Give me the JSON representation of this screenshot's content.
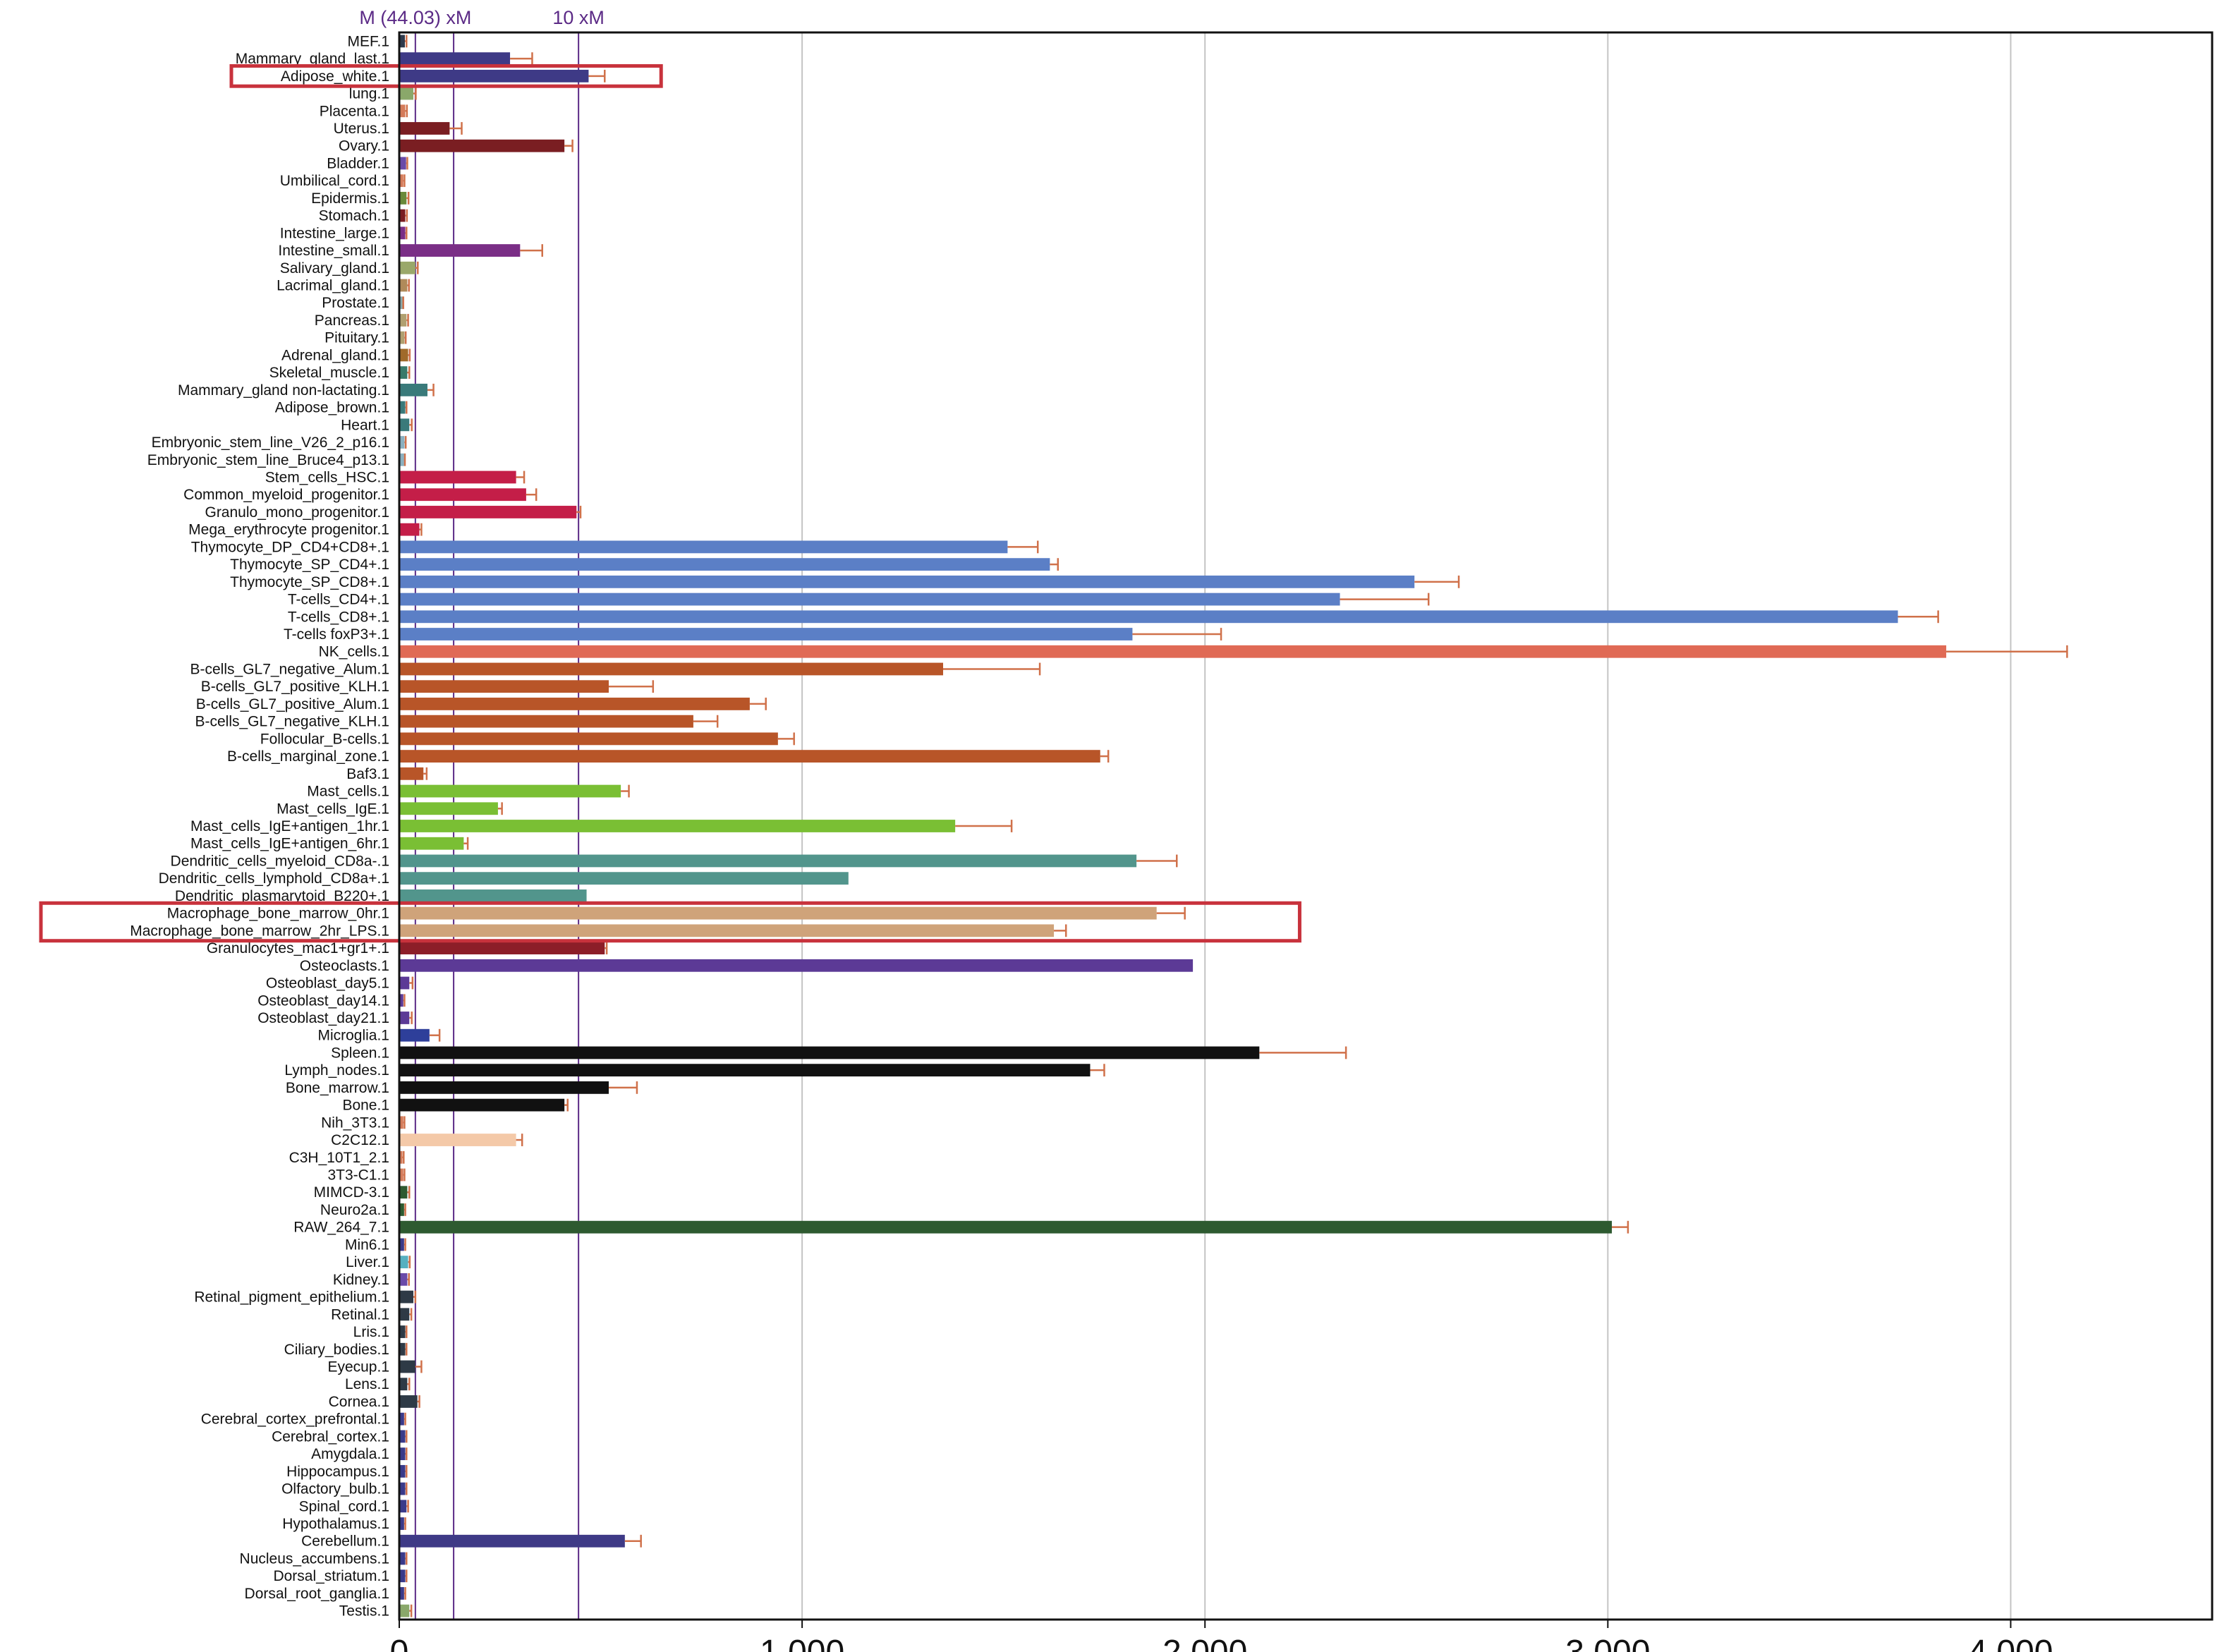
{
  "chart_data": {
    "type": "bar",
    "orientation": "horizontal",
    "xlim": [
      0,
      4500
    ],
    "x_ticks": [
      0,
      1000,
      2000,
      3000,
      4000
    ],
    "x_tick_labels": [
      "0",
      "1,000",
      "2,000",
      "3,000",
      "4,000"
    ],
    "grid": true,
    "reference_lines": [
      {
        "value": 40,
        "label": "M (44.03) xM",
        "color": "#5b2a86"
      },
      {
        "value": 135,
        "label": "",
        "color": "#5b2a86"
      },
      {
        "value": 445,
        "label": "10 xM",
        "color": "#5b2a86"
      }
    ],
    "highlight_boxes": [
      {
        "categories": [
          "Adipose_white.1"
        ],
        "color": "#c8323c"
      },
      {
        "categories": [
          "Macrophage_bone_marrow_0hr.1",
          "Macrophage_bone_marrow_2hr_LPS.1"
        ],
        "color": "#c8323c"
      }
    ],
    "error_bar_color": "#d0714a",
    "bars": [
      {
        "label": "MEF.1",
        "value": 14,
        "error": 4,
        "color": "#2f3a4c"
      },
      {
        "label": "Mammary_gland_last.1",
        "value": 275,
        "error": 55,
        "color": "#3e3a86"
      },
      {
        "label": "Adipose_white.1",
        "value": 470,
        "error": 40,
        "color": "#3e3a86"
      },
      {
        "label": "lung.1",
        "value": 35,
        "error": 6,
        "color": "#8aa86a"
      },
      {
        "label": "Placenta.1",
        "value": 15,
        "error": 4,
        "color": "#d47b5a"
      },
      {
        "label": "Uterus.1",
        "value": 125,
        "error": 30,
        "color": "#7a1e22"
      },
      {
        "label": "Ovary.1",
        "value": 410,
        "error": 20,
        "color": "#7a1e22"
      },
      {
        "label": "Bladder.1",
        "value": 17,
        "error": 3,
        "color": "#6a4aa8"
      },
      {
        "label": "Umbilical_cord.1",
        "value": 10,
        "error": 3,
        "color": "#d47b5a"
      },
      {
        "label": "Epidermis.1",
        "value": 18,
        "error": 5,
        "color": "#6a8a3a"
      },
      {
        "label": "Stomach.1",
        "value": 15,
        "error": 4,
        "color": "#7a1e22"
      },
      {
        "label": "Intestine_large.1",
        "value": 15,
        "error": 3,
        "color": "#7a2e86"
      },
      {
        "label": "Intestine_small.1",
        "value": 300,
        "error": 55,
        "color": "#7a2e86"
      },
      {
        "label": "Salivary_gland.1",
        "value": 40,
        "error": 6,
        "color": "#9aa86a"
      },
      {
        "label": "Lacrimal_gland.1",
        "value": 20,
        "error": 4,
        "color": "#b08a5a"
      },
      {
        "label": "Prostate.1",
        "value": 8,
        "error": 2,
        "color": "#8aa8a8"
      },
      {
        "label": "Pancreas.1",
        "value": 18,
        "error": 4,
        "color": "#b0a070"
      },
      {
        "label": "Pituitary.1",
        "value": 13,
        "error": 3,
        "color": "#b0a070"
      },
      {
        "label": "Adrenal_gland.1",
        "value": 22,
        "error": 4,
        "color": "#a06a2a"
      },
      {
        "label": "Skeletal_muscle.1",
        "value": 20,
        "error": 5,
        "color": "#3a7a6a"
      },
      {
        "label": "Mammary_gland non-lactating.1",
        "value": 70,
        "error": 15,
        "color": "#3a7a7a"
      },
      {
        "label": "Adipose_brown.1",
        "value": 15,
        "error": 3,
        "color": "#3a7a7a"
      },
      {
        "label": "Heart.1",
        "value": 25,
        "error": 6,
        "color": "#3a7a7a"
      },
      {
        "label": "Embryonic_stem_line_V26_2_p16.1",
        "value": 13,
        "error": 3,
        "color": "#8ab0c0"
      },
      {
        "label": "Embryonic_stem_line_Bruce4_p13.1",
        "value": 12,
        "error": 2,
        "color": "#8ab0c0"
      },
      {
        "label": "Stem_cells_HSC.1",
        "value": 290,
        "error": 20,
        "color": "#c41e48"
      },
      {
        "label": "Common_myeloid_progenitor.1",
        "value": 315,
        "error": 25,
        "color": "#c41e48"
      },
      {
        "label": "Granulo_mono_progenitor.1",
        "value": 440,
        "error": 10,
        "color": "#c41e48"
      },
      {
        "label": "Mega_erythrocyte progenitor.1",
        "value": 50,
        "error": 5,
        "color": "#c41e48"
      },
      {
        "label": "Thymocyte_DP_CD4+CD8+.1",
        "value": 1510,
        "error": 75,
        "color": "#5b7fc6"
      },
      {
        "label": "Thymocyte_SP_CD4+.1",
        "value": 1615,
        "error": 20,
        "color": "#5b7fc6"
      },
      {
        "label": "Thymocyte_SP_CD8+.1",
        "value": 2520,
        "error": 110,
        "color": "#5b7fc6"
      },
      {
        "label": "T-cells_CD4+.1",
        "value": 2335,
        "error": 220,
        "color": "#5b7fc6"
      },
      {
        "label": "T-cells_CD8+.1",
        "value": 3720,
        "error": 100,
        "color": "#5b7fc6"
      },
      {
        "label": "T-cells foxP3+.1",
        "value": 1820,
        "error": 220,
        "color": "#5b7fc6"
      },
      {
        "label": "NK_cells.1",
        "value": 3840,
        "error": 300,
        "color": "#e06a55"
      },
      {
        "label": "B-cells_GL7_negative_Alum.1",
        "value": 1350,
        "error": 240,
        "color": "#b85528"
      },
      {
        "label": "B-cells_GL7_positive_KLH.1",
        "value": 520,
        "error": 110,
        "color": "#b85528"
      },
      {
        "label": "B-cells_GL7_positive_Alum.1",
        "value": 870,
        "error": 40,
        "color": "#b85528"
      },
      {
        "label": "B-cells_GL7_negative_KLH.1",
        "value": 730,
        "error": 60,
        "color": "#b85528"
      },
      {
        "label": "Follocular_B-cells.1",
        "value": 940,
        "error": 40,
        "color": "#b85528"
      },
      {
        "label": "B-cells_marginal_zone.1",
        "value": 1740,
        "error": 20,
        "color": "#b85528"
      },
      {
        "label": "Baf3.1",
        "value": 60,
        "error": 8,
        "color": "#b85528"
      },
      {
        "label": "Mast_cells.1",
        "value": 550,
        "error": 20,
        "color": "#7abf34"
      },
      {
        "label": "Mast_cells_IgE.1",
        "value": 245,
        "error": 10,
        "color": "#7abf34"
      },
      {
        "label": "Mast_cells_IgE+antigen_1hr.1",
        "value": 1380,
        "error": 140,
        "color": "#7abf34"
      },
      {
        "label": "Mast_cells_IgE+antigen_6hr.1",
        "value": 160,
        "error": 10,
        "color": "#7abf34"
      },
      {
        "label": "Dendritic_cells_myeloid_CD8a-.1",
        "value": 1830,
        "error": 100,
        "color": "#52958c"
      },
      {
        "label": "Dendritic_cells_lymphold_CD8a+.1",
        "value": 1115,
        "error": 0,
        "color": "#52958c"
      },
      {
        "label": "Dendritic_plasmarytoid_B220+.1",
        "value": 465,
        "error": 0,
        "color": "#52958c"
      },
      {
        "label": "Macrophage_bone_marrow_0hr.1",
        "value": 1880,
        "error": 70,
        "color": "#cfa37a"
      },
      {
        "label": "Macrophage_bone_marrow_2hr_LPS.1",
        "value": 1625,
        "error": 30,
        "color": "#cfa37a"
      },
      {
        "label": "Granulocytes_mac1+gr1+.1",
        "value": 510,
        "error": 5,
        "color": "#8c1e28"
      },
      {
        "label": "Osteoclasts.1",
        "value": 1970,
        "error": 0,
        "color": "#5c3a96"
      },
      {
        "label": "Osteoblast_day5.1",
        "value": 25,
        "error": 8,
        "color": "#5c3a96"
      },
      {
        "label": "Osteoblast_day14.1",
        "value": 10,
        "error": 3,
        "color": "#5c3a96"
      },
      {
        "label": "Osteoblast_day21.1",
        "value": 25,
        "error": 6,
        "color": "#5c3a96"
      },
      {
        "label": "Microglia.1",
        "value": 75,
        "error": 25,
        "color": "#2e3f9a"
      },
      {
        "label": "Spleen.1",
        "value": 2135,
        "error": 215,
        "color": "#111111"
      },
      {
        "label": "Lymph_nodes.1",
        "value": 1715,
        "error": 35,
        "color": "#111111"
      },
      {
        "label": "Bone_marrow.1",
        "value": 520,
        "error": 70,
        "color": "#111111"
      },
      {
        "label": "Bone.1",
        "value": 410,
        "error": 8,
        "color": "#111111"
      },
      {
        "label": "Nih_3T3.1",
        "value": 10,
        "error": 3,
        "color": "#d47b5a"
      },
      {
        "label": "C2C12.1",
        "value": 290,
        "error": 15,
        "color": "#f4c9a8"
      },
      {
        "label": "C3H_10T1_2.1",
        "value": 8,
        "error": 3,
        "color": "#d47b5a"
      },
      {
        "label": "3T3-C1.1",
        "value": 10,
        "error": 3,
        "color": "#d47b5a"
      },
      {
        "label": "MIMCD-3.1",
        "value": 20,
        "error": 5,
        "color": "#2e5a30"
      },
      {
        "label": "Neuro2a.1",
        "value": 12,
        "error": 3,
        "color": "#2e5a30"
      },
      {
        "label": "RAW_264_7.1",
        "value": 3010,
        "error": 40,
        "color": "#2e5a30"
      },
      {
        "label": "Min6.1",
        "value": 12,
        "error": 3,
        "color": "#3a3a8a"
      },
      {
        "label": "Liver.1",
        "value": 22,
        "error": 4,
        "color": "#56b0c0"
      },
      {
        "label": "Kidney.1",
        "value": 20,
        "error": 4,
        "color": "#6a4aa8"
      },
      {
        "label": "Retinal_pigment_epithelium.1",
        "value": 35,
        "error": 5,
        "color": "#2e3a46"
      },
      {
        "label": "Retinal.1",
        "value": 25,
        "error": 5,
        "color": "#2e3a46"
      },
      {
        "label": "Lris.1",
        "value": 15,
        "error": 3,
        "color": "#2e3a46"
      },
      {
        "label": "Ciliary_bodies.1",
        "value": 15,
        "error": 3,
        "color": "#2e3a46"
      },
      {
        "label": "Eyecup.1",
        "value": 40,
        "error": 15,
        "color": "#2e3a46"
      },
      {
        "label": "Lens.1",
        "value": 20,
        "error": 5,
        "color": "#2e3a46"
      },
      {
        "label": "Cornea.1",
        "value": 45,
        "error": 5,
        "color": "#2e3a46"
      },
      {
        "label": "Cerebral_cortex_prefrontal.1",
        "value": 12,
        "error": 3,
        "color": "#3a3a8a"
      },
      {
        "label": "Cerebral_cortex.1",
        "value": 15,
        "error": 3,
        "color": "#3a3a8a"
      },
      {
        "label": "Amygdala.1",
        "value": 15,
        "error": 3,
        "color": "#3a3a8a"
      },
      {
        "label": "Hippocampus.1",
        "value": 15,
        "error": 3,
        "color": "#3a3a8a"
      },
      {
        "label": "Olfactory_bulb.1",
        "value": 15,
        "error": 3,
        "color": "#3a3a8a"
      },
      {
        "label": "Spinal_cord.1",
        "value": 18,
        "error": 4,
        "color": "#3a3a8a"
      },
      {
        "label": "Hypothalamus.1",
        "value": 12,
        "error": 3,
        "color": "#3a3a8a"
      },
      {
        "label": "Cerebellum.1",
        "value": 560,
        "error": 40,
        "color": "#3e3a86"
      },
      {
        "label": "Nucleus_accumbens.1",
        "value": 15,
        "error": 3,
        "color": "#3a3a8a"
      },
      {
        "label": "Dorsal_striatum.1",
        "value": 15,
        "error": 3,
        "color": "#3a3a8a"
      },
      {
        "label": "Dorsal_root_ganglia.1",
        "value": 12,
        "error": 3,
        "color": "#3a3a8a"
      },
      {
        "label": "Testis.1",
        "value": 25,
        "error": 5,
        "color": "#8aa86a"
      }
    ]
  }
}
